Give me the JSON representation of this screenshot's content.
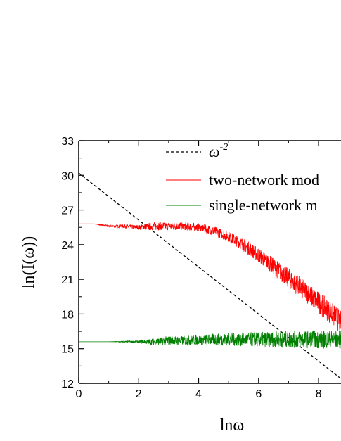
{
  "chart_data": {
    "type": "line",
    "title": "",
    "xlabel": "lnω",
    "ylabel": "ln(I(ω))",
    "xlim": [
      0,
      8.75
    ],
    "ylim": [
      12,
      33
    ],
    "x_ticks": [
      0,
      2,
      4,
      6,
      8
    ],
    "y_ticks": [
      12,
      15,
      18,
      21,
      24,
      27,
      30,
      33
    ],
    "legend_position": "top-right",
    "grid": false,
    "series": [
      {
        "name": "ω^-2",
        "legend_main": "ω",
        "legend_sup": "-2",
        "style": "dashed",
        "color": "#000000",
        "x": [
          0,
          8.75
        ],
        "y": [
          30.2,
          12.4
        ]
      },
      {
        "name": "two-network mod",
        "style": "solid",
        "color": "#ff0000",
        "x": [
          0,
          0.5,
          1.0,
          1.5,
          2.0,
          2.5,
          3.0,
          3.5,
          4.0,
          4.5,
          5.0,
          5.5,
          6.0,
          6.5,
          7.0,
          7.5,
          8.0,
          8.5,
          8.75
        ],
        "y": [
          25.8,
          25.8,
          25.6,
          25.6,
          25.5,
          25.6,
          25.6,
          25.6,
          25.5,
          25.2,
          24.7,
          24.0,
          23.1,
          22.1,
          21.1,
          20.1,
          19.0,
          17.9,
          17.3
        ],
        "noise": [
          0,
          0,
          0.1,
          0.15,
          0.2,
          0.35,
          0.35,
          0.35,
          0.35,
          0.4,
          0.45,
          0.55,
          0.65,
          0.75,
          0.85,
          0.9,
          0.95,
          1.0,
          1.0
        ]
      },
      {
        "name": "single-network m",
        "style": "solid",
        "color": "#008000",
        "x": [
          0,
          0.5,
          1.0,
          1.5,
          2.0,
          2.5,
          3.0,
          3.5,
          4.0,
          4.5,
          5.0,
          5.5,
          6.0,
          6.5,
          7.0,
          7.5,
          8.0,
          8.5,
          8.75
        ],
        "y": [
          15.6,
          15.6,
          15.6,
          15.6,
          15.6,
          15.6,
          15.7,
          15.7,
          15.75,
          15.8,
          15.8,
          15.8,
          15.8,
          15.8,
          15.8,
          15.8,
          15.8,
          15.8,
          15.8
        ],
        "noise": [
          0,
          0,
          0,
          0.05,
          0.1,
          0.3,
          0.4,
          0.4,
          0.45,
          0.5,
          0.55,
          0.6,
          0.65,
          0.7,
          0.75,
          0.75,
          0.8,
          0.8,
          0.8
        ]
      }
    ]
  }
}
